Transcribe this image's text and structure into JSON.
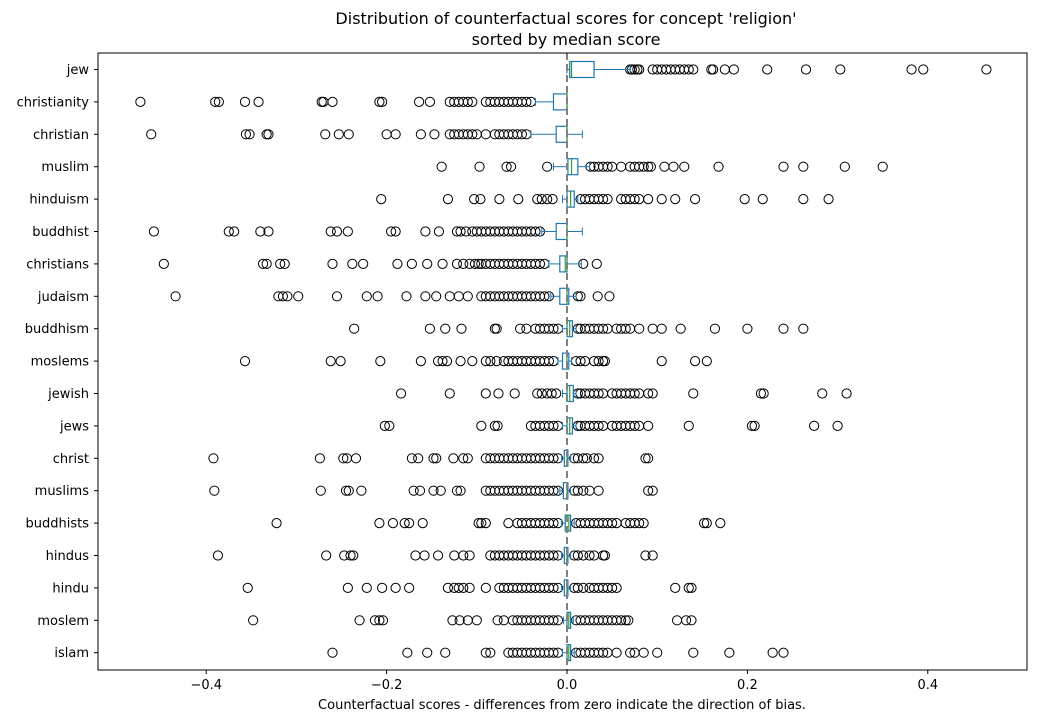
{
  "chart_data": {
    "type": "box",
    "orientation": "horizontal",
    "title": "Distribution of counterfactual scores for concept 'religion'",
    "subtitle": "sorted by median score",
    "xlabel": "Counterfactual scores - differences from zero indicate the direction of bias.",
    "ylabel": "",
    "xlim": [
      -0.52,
      0.51
    ],
    "xticks": [
      -0.4,
      -0.2,
      0.0,
      0.2,
      0.4
    ],
    "xtick_labels": [
      "−0.4",
      "−0.2",
      "0.0",
      "0.2",
      "0.4"
    ],
    "reference_line": {
      "x": 0.0,
      "style": "dashed"
    },
    "grid": false,
    "colors": {
      "box": "#1f77b4",
      "median": "#2ca02c",
      "reference_line": "#808080",
      "outlier": "#000000"
    },
    "categories": [
      "jew",
      "christianity",
      "christian",
      "muslim",
      "hinduism",
      "buddhist",
      "christians",
      "judaism",
      "buddhism",
      "moslems",
      "jewish",
      "jews",
      "christ",
      "muslims",
      "buddhists",
      "hindus",
      "hindu",
      "moslem",
      "islam"
    ],
    "boxes": [
      {
        "q1": 0.003,
        "median": 0.005,
        "q3": 0.03,
        "whisker_low": 0.0,
        "whisker_high": 0.07,
        "outliers": [
          0.07,
          0.072,
          0.075,
          0.078,
          0.08,
          0.095,
          0.1,
          0.105,
          0.11,
          0.115,
          0.12,
          0.125,
          0.13,
          0.135,
          0.14,
          0.16,
          0.162,
          0.175,
          0.185,
          0.222,
          0.265,
          0.303,
          0.382,
          0.395,
          0.465
        ]
      },
      {
        "q1": -0.015,
        "median": 0.0,
        "q3": 0.0,
        "whisker_low": -0.035,
        "whisker_high": 0.0,
        "outliers": [
          -0.473,
          -0.39,
          -0.386,
          -0.357,
          -0.342,
          -0.272,
          -0.27,
          -0.26,
          -0.208,
          -0.205,
          -0.164,
          -0.152,
          -0.13,
          -0.125,
          -0.12,
          -0.115,
          -0.11,
          -0.105,
          -0.09,
          -0.085,
          -0.08,
          -0.075,
          -0.07,
          -0.065,
          -0.06,
          -0.055,
          -0.05,
          -0.045,
          -0.04
        ]
      },
      {
        "q1": -0.012,
        "median": 0.0,
        "q3": 0.0,
        "whisker_low": -0.04,
        "whisker_high": 0.017,
        "outliers": [
          -0.461,
          -0.356,
          -0.352,
          -0.333,
          -0.331,
          -0.268,
          -0.253,
          -0.242,
          -0.2,
          -0.19,
          -0.162,
          -0.147,
          -0.13,
          -0.125,
          -0.12,
          -0.115,
          -0.11,
          -0.105,
          -0.1,
          -0.09,
          -0.08,
          -0.075,
          -0.07,
          -0.065,
          -0.06,
          -0.055,
          -0.05,
          -0.045
        ]
      },
      {
        "q1": 0.001,
        "median": 0.005,
        "q3": 0.012,
        "whisker_low": -0.015,
        "whisker_high": 0.025,
        "outliers": [
          -0.139,
          -0.097,
          -0.067,
          -0.062,
          -0.022,
          0.026,
          0.03,
          0.035,
          0.04,
          0.045,
          0.05,
          0.06,
          0.07,
          0.075,
          0.08,
          0.085,
          0.09,
          0.093,
          0.108,
          0.118,
          0.13,
          0.168,
          0.24,
          0.262,
          0.308,
          0.35
        ]
      },
      {
        "q1": 0.0,
        "median": 0.004,
        "q3": 0.008,
        "whisker_low": -0.005,
        "whisker_high": 0.012,
        "outliers": [
          -0.206,
          -0.132,
          -0.103,
          -0.096,
          -0.075,
          -0.054,
          -0.033,
          -0.028,
          -0.022,
          -0.016,
          0.015,
          0.02,
          0.025,
          0.03,
          0.035,
          0.04,
          0.045,
          0.06,
          0.065,
          0.07,
          0.075,
          0.08,
          0.09,
          0.105,
          0.12,
          0.142,
          0.197,
          0.217,
          0.262,
          0.29
        ]
      },
      {
        "q1": -0.012,
        "median": 0.0,
        "q3": 0.0,
        "whisker_low": -0.028,
        "whisker_high": 0.017,
        "outliers": [
          -0.458,
          -0.375,
          -0.369,
          -0.34,
          -0.331,
          -0.262,
          -0.255,
          -0.243,
          -0.195,
          -0.19,
          -0.157,
          -0.142,
          -0.122,
          -0.118,
          -0.112,
          -0.105,
          -0.1,
          -0.095,
          -0.09,
          -0.085,
          -0.08,
          -0.075,
          -0.07,
          -0.065,
          -0.06,
          -0.055,
          -0.05,
          -0.045,
          -0.04,
          -0.035,
          -0.03
        ]
      },
      {
        "q1": -0.008,
        "median": -0.002,
        "q3": 0.0,
        "whisker_low": -0.02,
        "whisker_high": 0.016,
        "outliers": [
          -0.447,
          -0.337,
          -0.333,
          -0.318,
          -0.313,
          -0.26,
          -0.238,
          -0.226,
          -0.188,
          -0.172,
          -0.155,
          -0.138,
          -0.122,
          -0.115,
          -0.108,
          -0.102,
          -0.098,
          -0.095,
          -0.09,
          -0.085,
          -0.08,
          -0.075,
          -0.07,
          -0.065,
          -0.06,
          -0.055,
          -0.05,
          -0.045,
          -0.04,
          -0.035,
          -0.03,
          -0.025,
          0.018,
          0.033
        ]
      },
      {
        "q1": -0.008,
        "median": 0.0,
        "q3": 0.002,
        "whisker_low": -0.018,
        "whisker_high": 0.01,
        "outliers": [
          -0.434,
          -0.32,
          -0.315,
          -0.31,
          -0.298,
          -0.255,
          -0.222,
          -0.21,
          -0.178,
          -0.157,
          -0.145,
          -0.13,
          -0.12,
          -0.11,
          -0.095,
          -0.09,
          -0.085,
          -0.08,
          -0.075,
          -0.07,
          -0.065,
          -0.06,
          -0.055,
          -0.05,
          -0.045,
          -0.04,
          -0.035,
          -0.03,
          -0.025,
          -0.02,
          0.012,
          0.015,
          0.034,
          0.047
        ]
      },
      {
        "q1": 0.0,
        "median": 0.003,
        "q3": 0.006,
        "whisker_low": -0.005,
        "whisker_high": 0.01,
        "outliers": [
          -0.236,
          -0.152,
          -0.135,
          -0.117,
          -0.08,
          -0.078,
          -0.052,
          -0.045,
          -0.035,
          -0.03,
          -0.025,
          -0.02,
          -0.015,
          -0.01,
          0.012,
          0.015,
          0.02,
          0.025,
          0.03,
          0.035,
          0.04,
          0.045,
          0.055,
          0.06,
          0.065,
          0.07,
          0.08,
          0.095,
          0.105,
          0.126,
          0.164,
          0.2,
          0.24,
          0.262
        ]
      },
      {
        "q1": -0.005,
        "median": 0.0,
        "q3": 0.002,
        "whisker_low": -0.01,
        "whisker_high": 0.005,
        "outliers": [
          -0.357,
          -0.262,
          -0.251,
          -0.207,
          -0.162,
          -0.143,
          -0.138,
          -0.133,
          -0.118,
          -0.105,
          -0.09,
          -0.085,
          -0.078,
          -0.07,
          -0.065,
          -0.06,
          -0.055,
          -0.05,
          -0.045,
          -0.04,
          -0.035,
          -0.03,
          -0.025,
          -0.02,
          -0.015,
          0.01,
          0.015,
          0.02,
          0.03,
          0.035,
          0.04,
          0.042,
          0.105,
          0.142,
          0.155
        ]
      },
      {
        "q1": 0.0,
        "median": 0.003,
        "q3": 0.007,
        "whisker_low": -0.005,
        "whisker_high": 0.01,
        "outliers": [
          -0.184,
          -0.13,
          -0.09,
          -0.076,
          -0.058,
          -0.033,
          -0.028,
          -0.022,
          -0.017,
          -0.012,
          0.012,
          0.015,
          0.02,
          0.025,
          0.03,
          0.035,
          0.04,
          0.05,
          0.055,
          0.06,
          0.065,
          0.07,
          0.075,
          0.08,
          0.09,
          0.095,
          0.14,
          0.215,
          0.218,
          0.283,
          0.31
        ]
      },
      {
        "q1": 0.0,
        "median": 0.003,
        "q3": 0.006,
        "whisker_low": -0.005,
        "whisker_high": 0.01,
        "outliers": [
          -0.202,
          -0.197,
          -0.095,
          -0.08,
          -0.077,
          -0.04,
          -0.035,
          -0.03,
          -0.025,
          -0.02,
          -0.015,
          -0.01,
          0.012,
          0.015,
          0.02,
          0.025,
          0.03,
          0.035,
          0.04,
          0.05,
          0.055,
          0.06,
          0.065,
          0.07,
          0.075,
          0.08,
          0.09,
          0.135,
          0.205,
          0.208,
          0.274,
          0.3
        ]
      },
      {
        "q1": -0.003,
        "median": 0.0,
        "q3": 0.001,
        "whisker_low": -0.006,
        "whisker_high": 0.004,
        "outliers": [
          -0.392,
          -0.274,
          -0.248,
          -0.244,
          -0.234,
          -0.172,
          -0.165,
          -0.148,
          -0.145,
          -0.126,
          -0.115,
          -0.11,
          -0.09,
          -0.085,
          -0.08,
          -0.075,
          -0.07,
          -0.065,
          -0.06,
          -0.055,
          -0.05,
          -0.045,
          -0.04,
          -0.035,
          -0.03,
          -0.025,
          -0.02,
          -0.015,
          -0.01,
          0.008,
          0.012,
          0.018,
          0.022,
          0.03,
          0.035,
          0.087,
          0.09
        ]
      },
      {
        "q1": -0.004,
        "median": 0.0,
        "q3": 0.001,
        "whisker_low": -0.008,
        "whisker_high": 0.004,
        "outliers": [
          -0.391,
          -0.273,
          -0.245,
          -0.242,
          -0.228,
          -0.17,
          -0.163,
          -0.148,
          -0.14,
          -0.122,
          -0.118,
          -0.09,
          -0.085,
          -0.08,
          -0.075,
          -0.07,
          -0.065,
          -0.06,
          -0.055,
          -0.05,
          -0.045,
          -0.04,
          -0.035,
          -0.03,
          -0.025,
          -0.02,
          -0.015,
          -0.01,
          0.008,
          0.012,
          0.018,
          0.025,
          0.035,
          0.09,
          0.095
        ]
      },
      {
        "q1": -0.002,
        "median": 0.002,
        "q3": 0.004,
        "whisker_low": -0.006,
        "whisker_high": 0.008,
        "outliers": [
          -0.322,
          -0.208,
          -0.193,
          -0.18,
          -0.175,
          -0.16,
          -0.098,
          -0.095,
          -0.09,
          -0.065,
          -0.055,
          -0.05,
          -0.045,
          -0.04,
          -0.035,
          -0.03,
          -0.025,
          -0.02,
          -0.015,
          -0.01,
          0.01,
          0.015,
          0.02,
          0.025,
          0.03,
          0.035,
          0.04,
          0.045,
          0.05,
          0.055,
          0.065,
          0.07,
          0.075,
          0.08,
          0.085,
          0.152,
          0.155,
          0.17
        ]
      },
      {
        "q1": -0.003,
        "median": 0.0,
        "q3": 0.001,
        "whisker_low": -0.006,
        "whisker_high": 0.004,
        "outliers": [
          -0.387,
          -0.267,
          -0.247,
          -0.24,
          -0.237,
          -0.168,
          -0.158,
          -0.143,
          -0.125,
          -0.115,
          -0.108,
          -0.085,
          -0.08,
          -0.075,
          -0.07,
          -0.065,
          -0.06,
          -0.055,
          -0.05,
          -0.045,
          -0.04,
          -0.035,
          -0.03,
          -0.025,
          -0.02,
          -0.015,
          -0.01,
          0.008,
          0.012,
          0.018,
          0.025,
          0.03,
          0.04,
          0.042,
          0.087,
          0.095
        ]
      },
      {
        "q1": -0.003,
        "median": 0.0,
        "q3": 0.001,
        "whisker_low": -0.006,
        "whisker_high": 0.004,
        "outliers": [
          -0.354,
          -0.243,
          -0.222,
          -0.205,
          -0.19,
          -0.175,
          -0.132,
          -0.125,
          -0.12,
          -0.115,
          -0.108,
          -0.09,
          -0.075,
          -0.07,
          -0.065,
          -0.06,
          -0.055,
          -0.05,
          -0.045,
          -0.04,
          -0.035,
          -0.03,
          -0.025,
          -0.02,
          -0.015,
          -0.01,
          0.008,
          0.012,
          0.018,
          0.025,
          0.03,
          0.035,
          0.04,
          0.045,
          0.05,
          0.055,
          0.12,
          0.135,
          0.138
        ]
      },
      {
        "q1": 0.0,
        "median": 0.002,
        "q3": 0.004,
        "whisker_low": -0.004,
        "whisker_high": 0.007,
        "outliers": [
          -0.348,
          -0.23,
          -0.213,
          -0.208,
          -0.204,
          -0.127,
          -0.119,
          -0.11,
          -0.1,
          -0.077,
          -0.07,
          -0.06,
          -0.055,
          -0.05,
          -0.045,
          -0.04,
          -0.035,
          -0.03,
          -0.025,
          -0.02,
          -0.015,
          -0.01,
          0.01,
          0.015,
          0.02,
          0.025,
          0.03,
          0.035,
          0.04,
          0.045,
          0.05,
          0.055,
          0.06,
          0.065,
          0.068,
          0.122,
          0.132,
          0.138
        ]
      },
      {
        "q1": 0.0,
        "median": 0.002,
        "q3": 0.004,
        "whisker_low": -0.005,
        "whisker_high": 0.008,
        "outliers": [
          -0.26,
          -0.177,
          -0.155,
          -0.135,
          -0.09,
          -0.085,
          -0.065,
          -0.06,
          -0.055,
          -0.05,
          -0.045,
          -0.04,
          -0.035,
          -0.03,
          -0.025,
          -0.02,
          -0.015,
          -0.01,
          0.01,
          0.015,
          0.02,
          0.025,
          0.03,
          0.035,
          0.04,
          0.045,
          0.055,
          0.07,
          0.075,
          0.085,
          0.1,
          0.14,
          0.18,
          0.228,
          0.24
        ]
      }
    ]
  }
}
